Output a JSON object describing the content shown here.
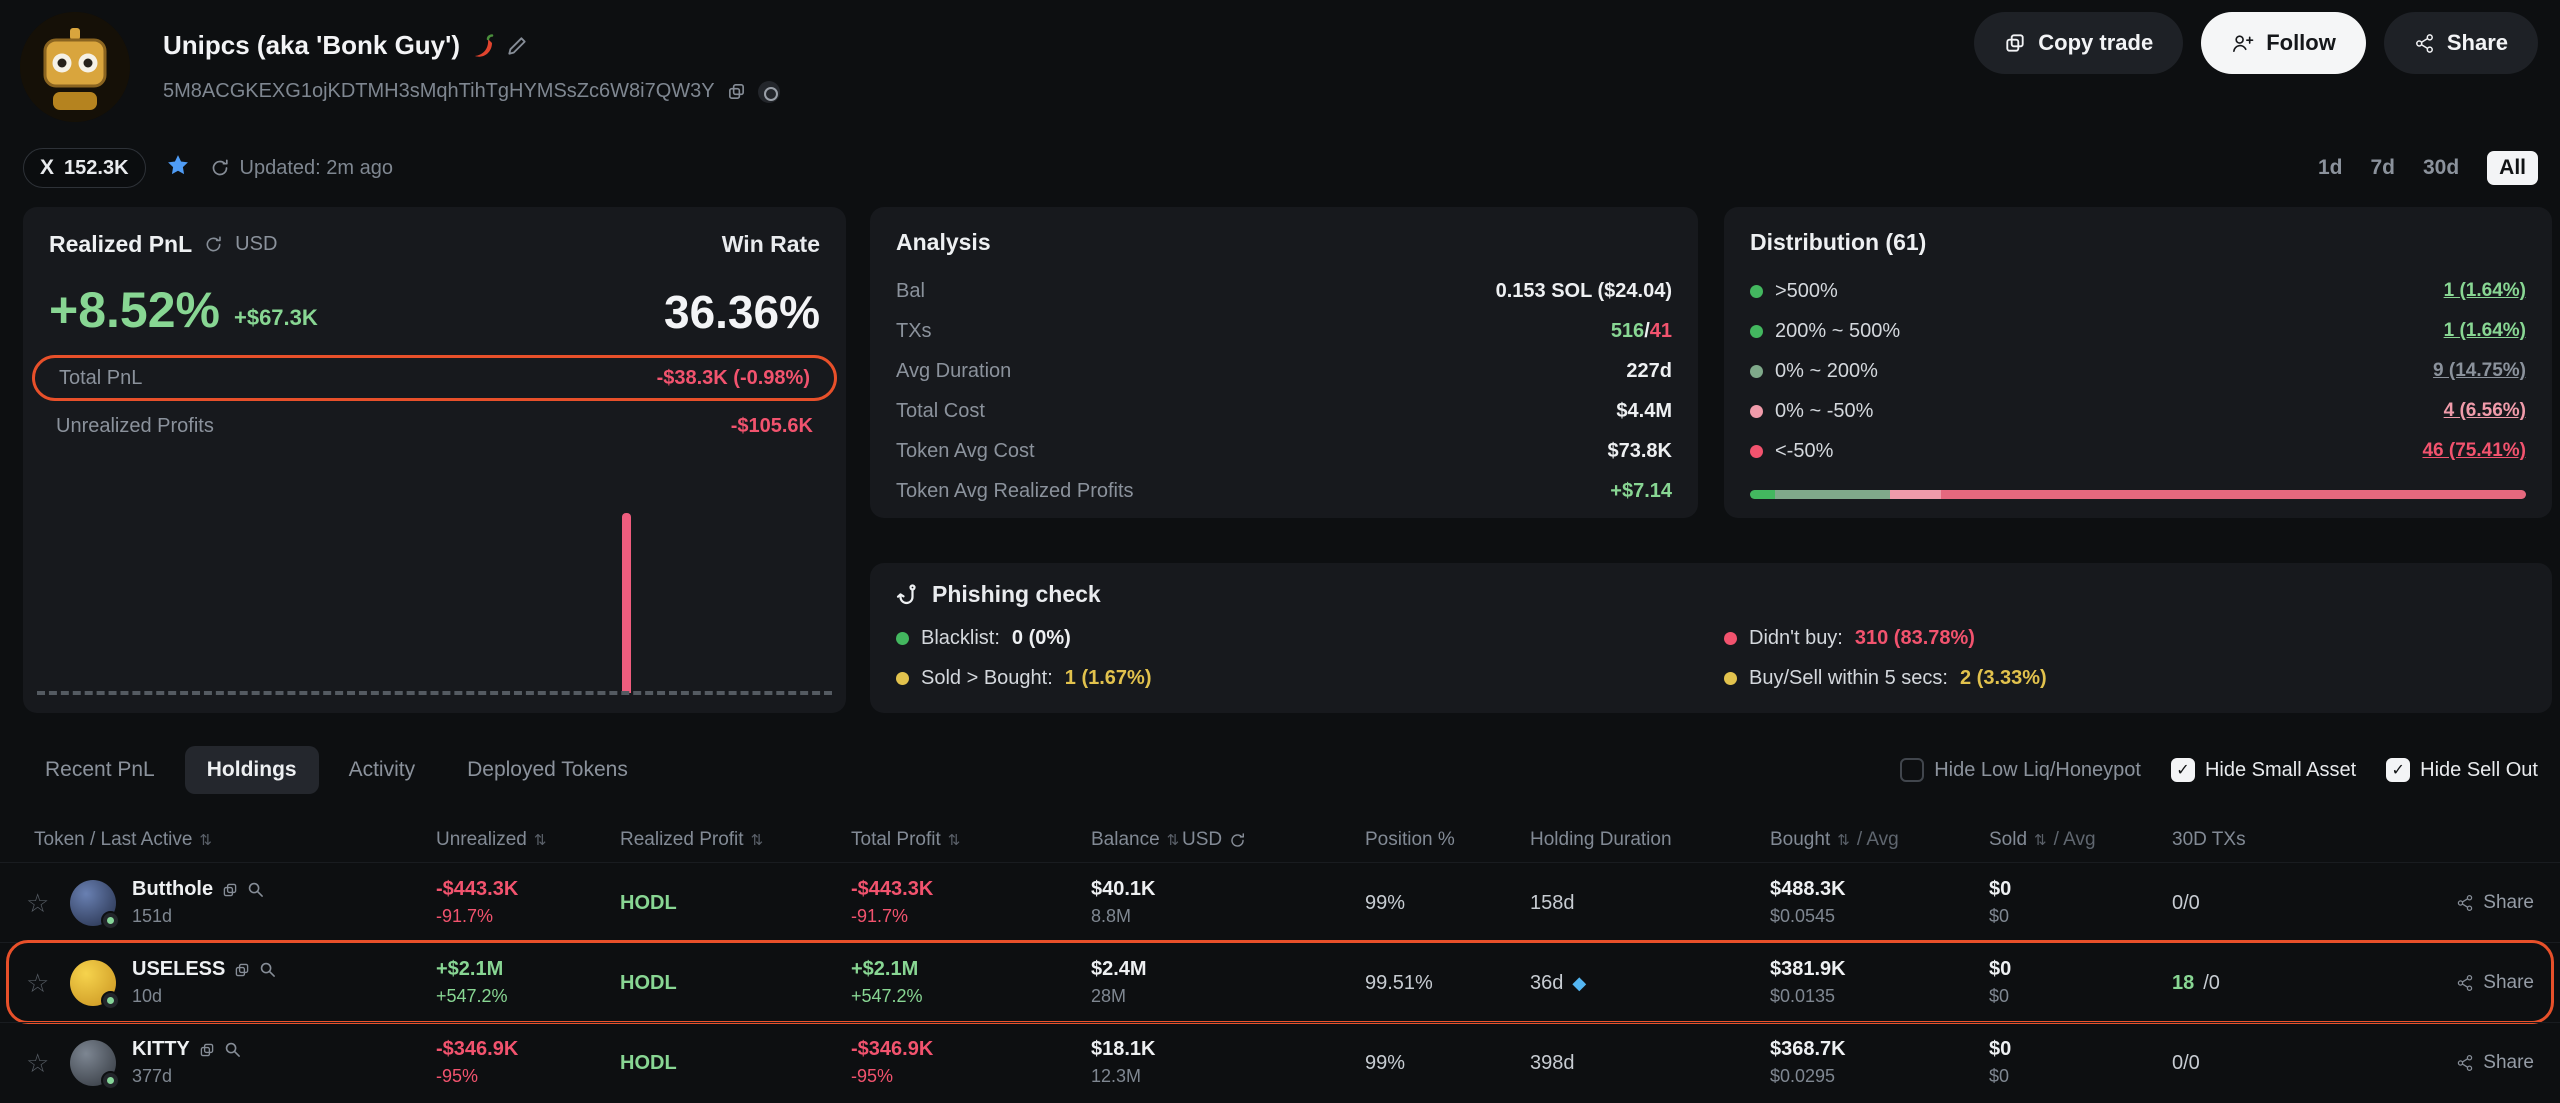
{
  "colors": {
    "accent-green": "#88d693",
    "accent-red": "#f2536e",
    "bright-green": "#43b75f",
    "muted-green": "#7fa98a",
    "light-pink": "#f09baa",
    "yellow": "#e2c24d",
    "orange": "#e8502a",
    "badge-blue": "#4f9cf5",
    "gem-blue": "#54b6f2",
    "bar-pink": "#ef5d7e"
  },
  "icons": {
    "star": "☆",
    "sort": "⇅",
    "check": "✓",
    "diamond": "◆",
    "x_logo": "X"
  },
  "header": {
    "title": "Unipcs (aka 'Bonk Guy')",
    "address": "5M8ACGKEXG1ojKDTMH3sMqhTihTgHYMSsZc6W8i7QW3Y",
    "actions": {
      "copy_trade": "Copy trade",
      "follow": "Follow",
      "share": "Share"
    }
  },
  "subbar": {
    "followers": "152.3K",
    "updated": "Updated: 2m ago",
    "timeframes": {
      "d1": "1d",
      "d7": "7d",
      "d30": "30d",
      "all": "All"
    }
  },
  "realized": {
    "title": "Realized PnL",
    "currency": "USD",
    "win_rate_label": "Win Rate",
    "pct": "+8.52%",
    "usd": "+$67.3K",
    "win_rate": "36.36%",
    "total_label": "Total PnL",
    "total_value": "-$38.3K (-0.98%)",
    "unrealized_label": "Unrealized Profits",
    "unrealized_value": "-$105.6K"
  },
  "analysis": {
    "title": "Analysis",
    "bal_label": "Bal",
    "bal_value": "0.153 SOL ($24.04)",
    "txs_label": "TXs",
    "txs_green": "516",
    "txs_sep": "/",
    "txs_red": "41",
    "avg_dur_label": "Avg Duration",
    "avg_dur_value": "227d",
    "cost_label": "Total Cost",
    "cost_value": "$4.4M",
    "token_cost_label": "Token Avg Cost",
    "token_cost_value": "$73.8K",
    "token_profit_label": "Token Avg Realized Profits",
    "token_profit_value": "+$7.14"
  },
  "distribution": {
    "title": "Distribution (61)",
    "rows": [
      {
        "label": ">500%",
        "value": "1 (1.64%)"
      },
      {
        "label": "200% ~ 500%",
        "value": "1 (1.64%)"
      },
      {
        "label": "0% ~ 200%",
        "value": "9 (14.75%)"
      },
      {
        "label": "0% ~ -50%",
        "value": "4 (6.56%)"
      },
      {
        "label": "<-50%",
        "value": "46 (75.41%)"
      }
    ],
    "bar": [
      {
        "pct": 3.28,
        "color": "#43b75f"
      },
      {
        "pct": 14.75,
        "color": "#7fa98a"
      },
      {
        "pct": 6.56,
        "color": "#f09baa"
      },
      {
        "pct": 75.41,
        "color": "#e5687e"
      }
    ]
  },
  "phishing": {
    "title": "Phishing check",
    "blacklist_label": "Blacklist:",
    "blacklist_value": "0 (0%)",
    "sold_label": "Sold > Bought:",
    "sold_value": "1 (1.67%)",
    "didnt_label": "Didn't buy:",
    "didnt_value": "310 (83.78%)",
    "buysell_label": "Buy/Sell within 5 secs:",
    "buysell_value": "2 (3.33%)"
  },
  "tabs": {
    "recent": "Recent PnL",
    "holdings": "Holdings",
    "activity": "Activity",
    "deployed": "Deployed Tokens"
  },
  "toggles": {
    "low_liq": "Hide Low Liq/Honeypot",
    "small_asset": "Hide Small Asset",
    "sell_out": "Hide Sell Out"
  },
  "table": {
    "share_label": "Share",
    "headers": {
      "token": "Token / Last Active",
      "unrealized": "Unrealized",
      "realized": "Realized Profit",
      "total": "Total Profit",
      "balance": "Balance",
      "usd": "USD",
      "position": "Position %",
      "duration": "Holding Duration",
      "bought": "Bought",
      "sold": "Sold",
      "avg": "/ Avg",
      "txs": "30D TXs"
    },
    "rows": [
      {
        "name": "Butthole",
        "last_active": "151d",
        "unrealized_value": "-$443.3K",
        "unrealized_pct": "-91.7%",
        "realized": "HODL",
        "total_value": "-$443.3K",
        "total_pct": "-91.7%",
        "balance_usd": "$40.1K",
        "balance_amt": "8.8M",
        "position": "99%",
        "duration": "158d",
        "bought_usd": "$488.3K",
        "bought_avg": "$0.0545",
        "sold_usd": "$0",
        "sold_avg": "$0",
        "txs": "0/0"
      },
      {
        "name": "USELESS",
        "last_active": "10d",
        "unrealized_value": "+$2.1M",
        "unrealized_pct": "+547.2%",
        "realized": "HODL",
        "total_value": "+$2.1M",
        "total_pct": "+547.2%",
        "balance_usd": "$2.4M",
        "balance_amt": "28M",
        "position": "99.51%",
        "duration": "36d",
        "bought_usd": "$381.9K",
        "bought_avg": "$0.0135",
        "sold_usd": "$0",
        "sold_avg": "$0",
        "txs_green": "18",
        "txs_rest": "/0"
      },
      {
        "name": "KITTY",
        "last_active": "377d",
        "unrealized_value": "-$346.9K",
        "unrealized_pct": "-95%",
        "realized": "HODL",
        "total_value": "-$346.9K",
        "total_pct": "-95%",
        "balance_usd": "$18.1K",
        "balance_amt": "12.3M",
        "position": "99%",
        "duration": "398d",
        "bought_usd": "$368.7K",
        "bought_avg": "$0.0295",
        "sold_usd": "$0",
        "sold_avg": "$0",
        "txs": "0/0"
      }
    ]
  }
}
